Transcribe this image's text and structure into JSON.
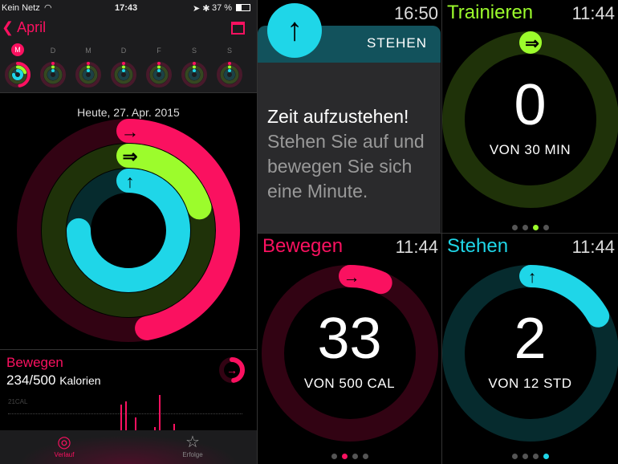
{
  "phone": {
    "status": {
      "carrier": "Kein Netz",
      "time": "17:43",
      "battery": "37 %"
    },
    "nav": {
      "back_label": "April"
    },
    "week_days": [
      "M",
      "D",
      "M",
      "D",
      "F",
      "S",
      "S"
    ],
    "date_label": "Heute, 27. Apr. 2015",
    "rings": {
      "move": 0.47,
      "exercise": 0.2,
      "stand": 0.75
    },
    "move_card": {
      "title": "Bewegen",
      "value": "234/500",
      "unit": "Kalorien",
      "axis_label": "21CAL",
      "bars": [
        8,
        9,
        0,
        4,
        0,
        0,
        0,
        1,
        11,
        0,
        0,
        2
      ]
    },
    "tabs": [
      {
        "label": "Verlauf",
        "icon": "activity-rings-icon",
        "active": true
      },
      {
        "label": "Erfolge",
        "icon": "star-icon",
        "active": false
      }
    ]
  },
  "watch_notification": {
    "time": "16:50",
    "header": "STEHEN",
    "title": "Zeit aufzustehen!",
    "body": "Stehen Sie auf und bewegen Sie sich eine Minute."
  },
  "watch_exercise": {
    "title": "Trainieren",
    "time": "11:44",
    "value": "0",
    "goal": "VON 30 MIN",
    "progress": 0,
    "page": 2,
    "color": "#9cfc2c"
  },
  "watch_move": {
    "title": "Bewegen",
    "time": "11:44",
    "value": "33",
    "goal": "VON 500 CAL",
    "progress": 0.066,
    "page": 1,
    "color": "#fa1160"
  },
  "watch_stand": {
    "title": "Stehen",
    "time": "11:44",
    "value": "2",
    "goal": "VON 12 STD",
    "progress": 0.17,
    "page": 3,
    "color": "#1fd6e8"
  },
  "colors": {
    "move": "#fa1160",
    "exercise": "#9cfc2c",
    "stand": "#1fd6e8"
  }
}
